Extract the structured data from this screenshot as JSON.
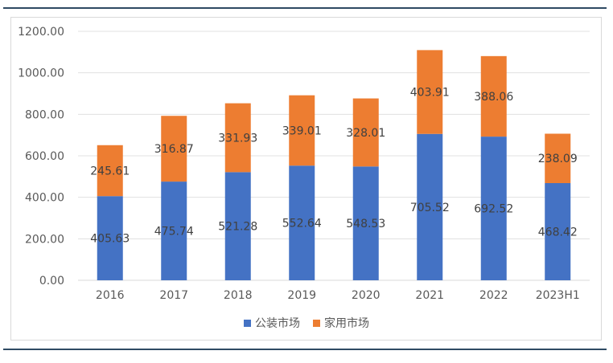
{
  "chart_data": {
    "type": "bar",
    "stacked": true,
    "categories": [
      "2016",
      "2017",
      "2018",
      "2019",
      "2020",
      "2021",
      "2022",
      "2023H1"
    ],
    "series": [
      {
        "name": "公装市场",
        "color": "#4472c4",
        "values": [
          405.63,
          475.74,
          521.28,
          552.64,
          548.53,
          705.52,
          692.52,
          468.42
        ],
        "labels": [
          "405.63",
          "475.74",
          "521.28",
          "552.64",
          "548.53",
          "705.52",
          "692.52",
          "468.42"
        ]
      },
      {
        "name": "家用市场",
        "color": "#ed7d31",
        "values": [
          245.61,
          316.87,
          331.93,
          339.01,
          328.01,
          403.91,
          388.06,
          238.09
        ],
        "labels": [
          "245.61",
          "316.87",
          "331.93",
          "339.01",
          "328.01",
          "403.91",
          "388.06",
          "238.09"
        ]
      }
    ],
    "ylim": [
      0,
      1200
    ],
    "yticks": [
      "0.00",
      "200.00",
      "400.00",
      "600.00",
      "800.00",
      "1000.00",
      "1200.00"
    ],
    "grid": true,
    "legend": "bottom"
  }
}
